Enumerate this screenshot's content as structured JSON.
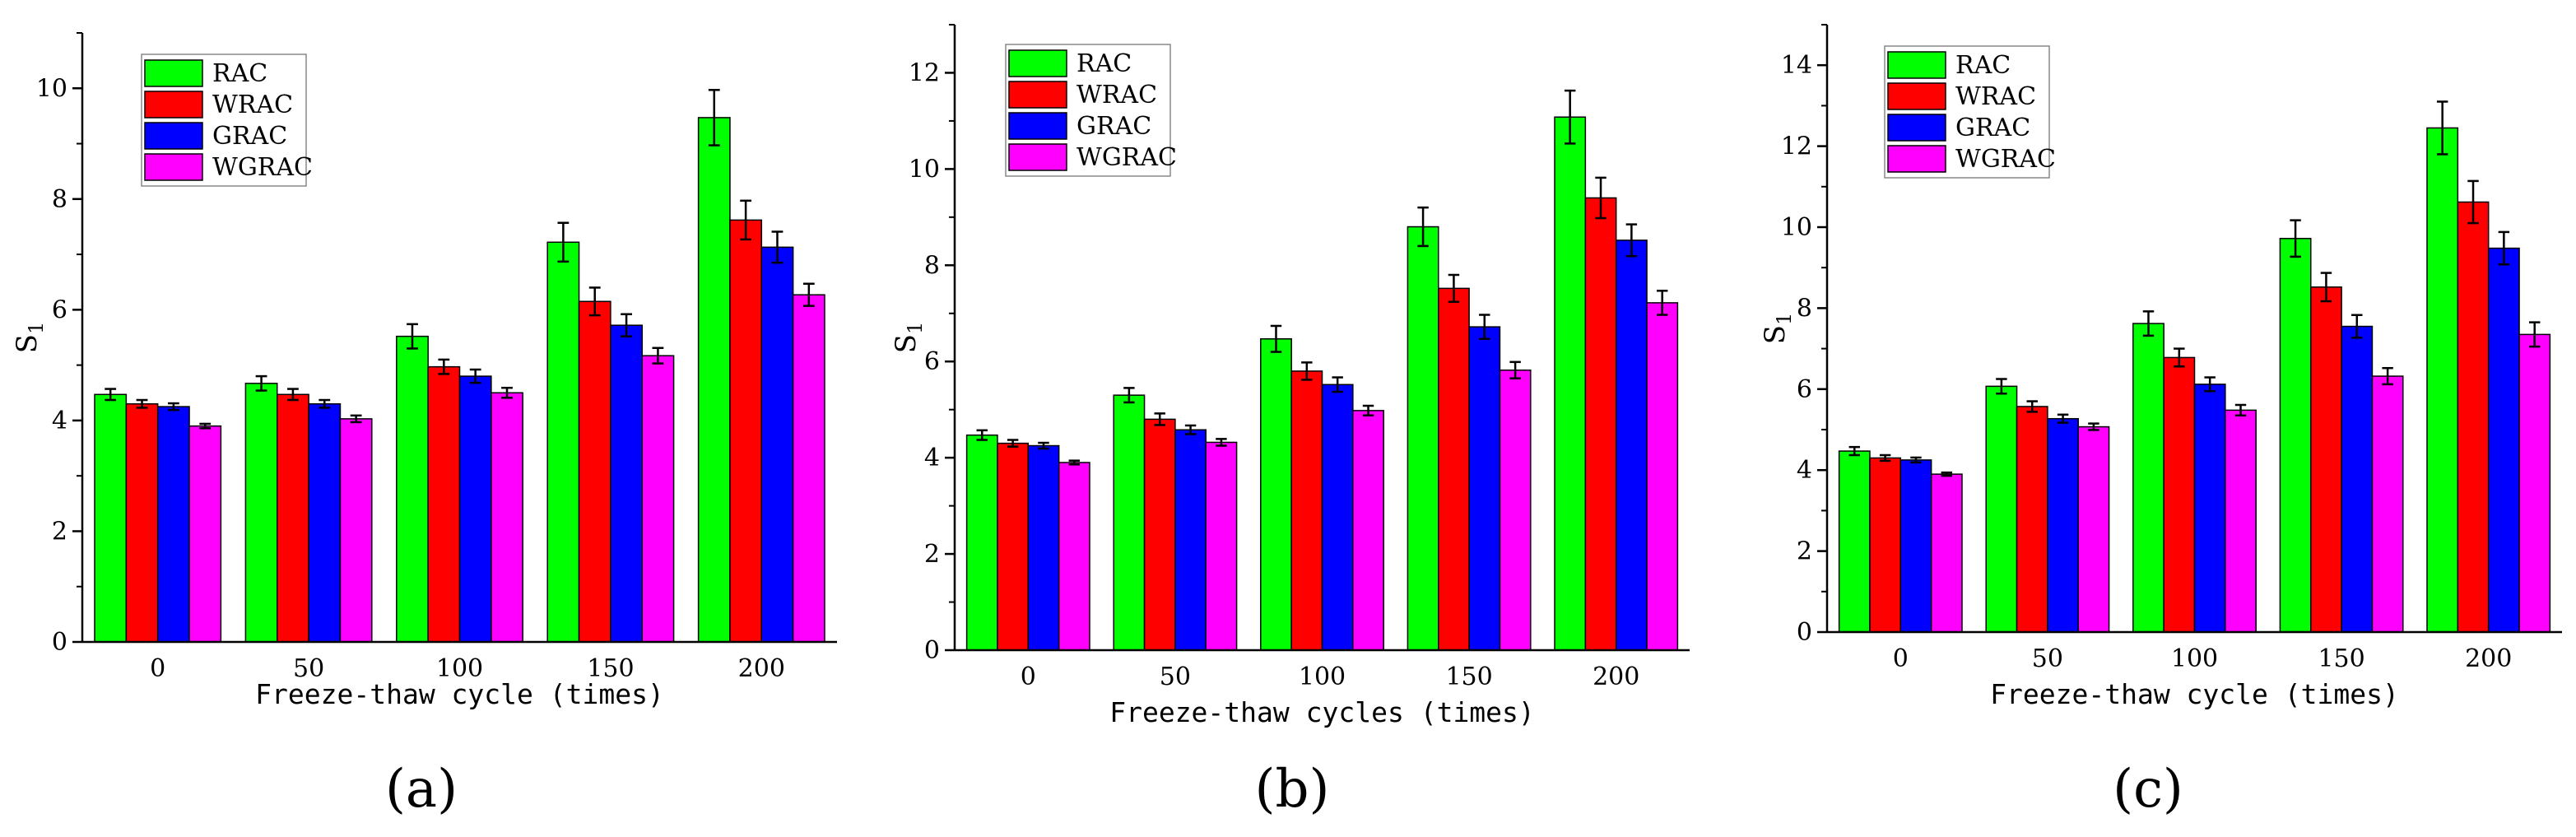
{
  "figure": {
    "captions": [
      "(a)",
      "(b)",
      "(c)"
    ]
  },
  "chart_data": [
    {
      "type": "bar",
      "panel": "(a)",
      "xlabel": "Freeze-thaw cycle (times)",
      "ylabel": "S",
      "ylabel_sub": "1",
      "ylim": [
        0,
        11
      ],
      "yticks": [
        0,
        2,
        4,
        6,
        8,
        10
      ],
      "categories": [
        "0",
        "50",
        "100",
        "150",
        "200"
      ],
      "series": [
        {
          "name": "RAC",
          "color": "#00ff00",
          "values": [
            4.47,
            4.67,
            5.52,
            7.22,
            9.47
          ],
          "errors": [
            0.1,
            0.13,
            0.22,
            0.35,
            0.5
          ]
        },
        {
          "name": "WRAC",
          "color": "#ff0000",
          "values": [
            4.3,
            4.47,
            4.97,
            6.15,
            7.62
          ],
          "errors": [
            0.07,
            0.1,
            0.13,
            0.25,
            0.35
          ]
        },
        {
          "name": "GRAC",
          "color": "#0000ff",
          "values": [
            4.25,
            4.3,
            4.8,
            5.72,
            7.13
          ],
          "errors": [
            0.06,
            0.07,
            0.12,
            0.2,
            0.28
          ]
        },
        {
          "name": "WGRAC",
          "color": "#ff00ff",
          "values": [
            3.9,
            4.03,
            4.5,
            5.17,
            6.27
          ],
          "errors": [
            0.04,
            0.06,
            0.09,
            0.14,
            0.2
          ]
        }
      ]
    },
    {
      "type": "bar",
      "panel": "(b)",
      "xlabel": "Freeze-thaw cycles (times)",
      "ylabel": "S",
      "ylabel_sub": "1",
      "ylim": [
        0,
        13
      ],
      "yticks": [
        0,
        2,
        4,
        6,
        8,
        10,
        12
      ],
      "categories": [
        "0",
        "50",
        "100",
        "150",
        "200"
      ],
      "series": [
        {
          "name": "RAC",
          "color": "#00ff00",
          "values": [
            4.47,
            5.3,
            6.47,
            8.8,
            11.08
          ],
          "errors": [
            0.1,
            0.15,
            0.27,
            0.4,
            0.55
          ]
        },
        {
          "name": "WRAC",
          "color": "#ff0000",
          "values": [
            4.3,
            4.8,
            5.8,
            7.52,
            9.4
          ],
          "errors": [
            0.07,
            0.12,
            0.18,
            0.28,
            0.42
          ]
        },
        {
          "name": "GRAC",
          "color": "#0000ff",
          "values": [
            4.25,
            4.58,
            5.52,
            6.72,
            8.52
          ],
          "errors": [
            0.06,
            0.09,
            0.15,
            0.25,
            0.33
          ]
        },
        {
          "name": "WGRAC",
          "color": "#ff00ff",
          "values": [
            3.9,
            4.32,
            4.98,
            5.82,
            7.22
          ],
          "errors": [
            0.04,
            0.07,
            0.1,
            0.17,
            0.25
          ]
        }
      ]
    },
    {
      "type": "bar",
      "panel": "(c)",
      "xlabel": "Freeze-thaw cycle (times)",
      "ylabel": "S",
      "ylabel_sub": "1",
      "ylim": [
        0,
        15
      ],
      "yticks": [
        0,
        2,
        4,
        6,
        8,
        10,
        12,
        14
      ],
      "categories": [
        "0",
        "50",
        "100",
        "150",
        "200"
      ],
      "series": [
        {
          "name": "RAC",
          "color": "#00ff00",
          "values": [
            4.47,
            6.07,
            7.62,
            9.72,
            12.45
          ],
          "errors": [
            0.1,
            0.18,
            0.3,
            0.45,
            0.65
          ]
        },
        {
          "name": "WRAC",
          "color": "#ff0000",
          "values": [
            4.3,
            5.57,
            6.78,
            8.52,
            10.62
          ],
          "errors": [
            0.07,
            0.13,
            0.22,
            0.35,
            0.52
          ]
        },
        {
          "name": "GRAC",
          "color": "#0000ff",
          "values": [
            4.25,
            5.27,
            6.12,
            7.55,
            9.48
          ],
          "errors": [
            0.06,
            0.1,
            0.17,
            0.28,
            0.4
          ]
        },
        {
          "name": "WGRAC",
          "color": "#ff00ff",
          "values": [
            3.9,
            5.07,
            5.48,
            6.32,
            7.35
          ],
          "errors": [
            0.04,
            0.08,
            0.13,
            0.2,
            0.3
          ]
        }
      ]
    }
  ]
}
